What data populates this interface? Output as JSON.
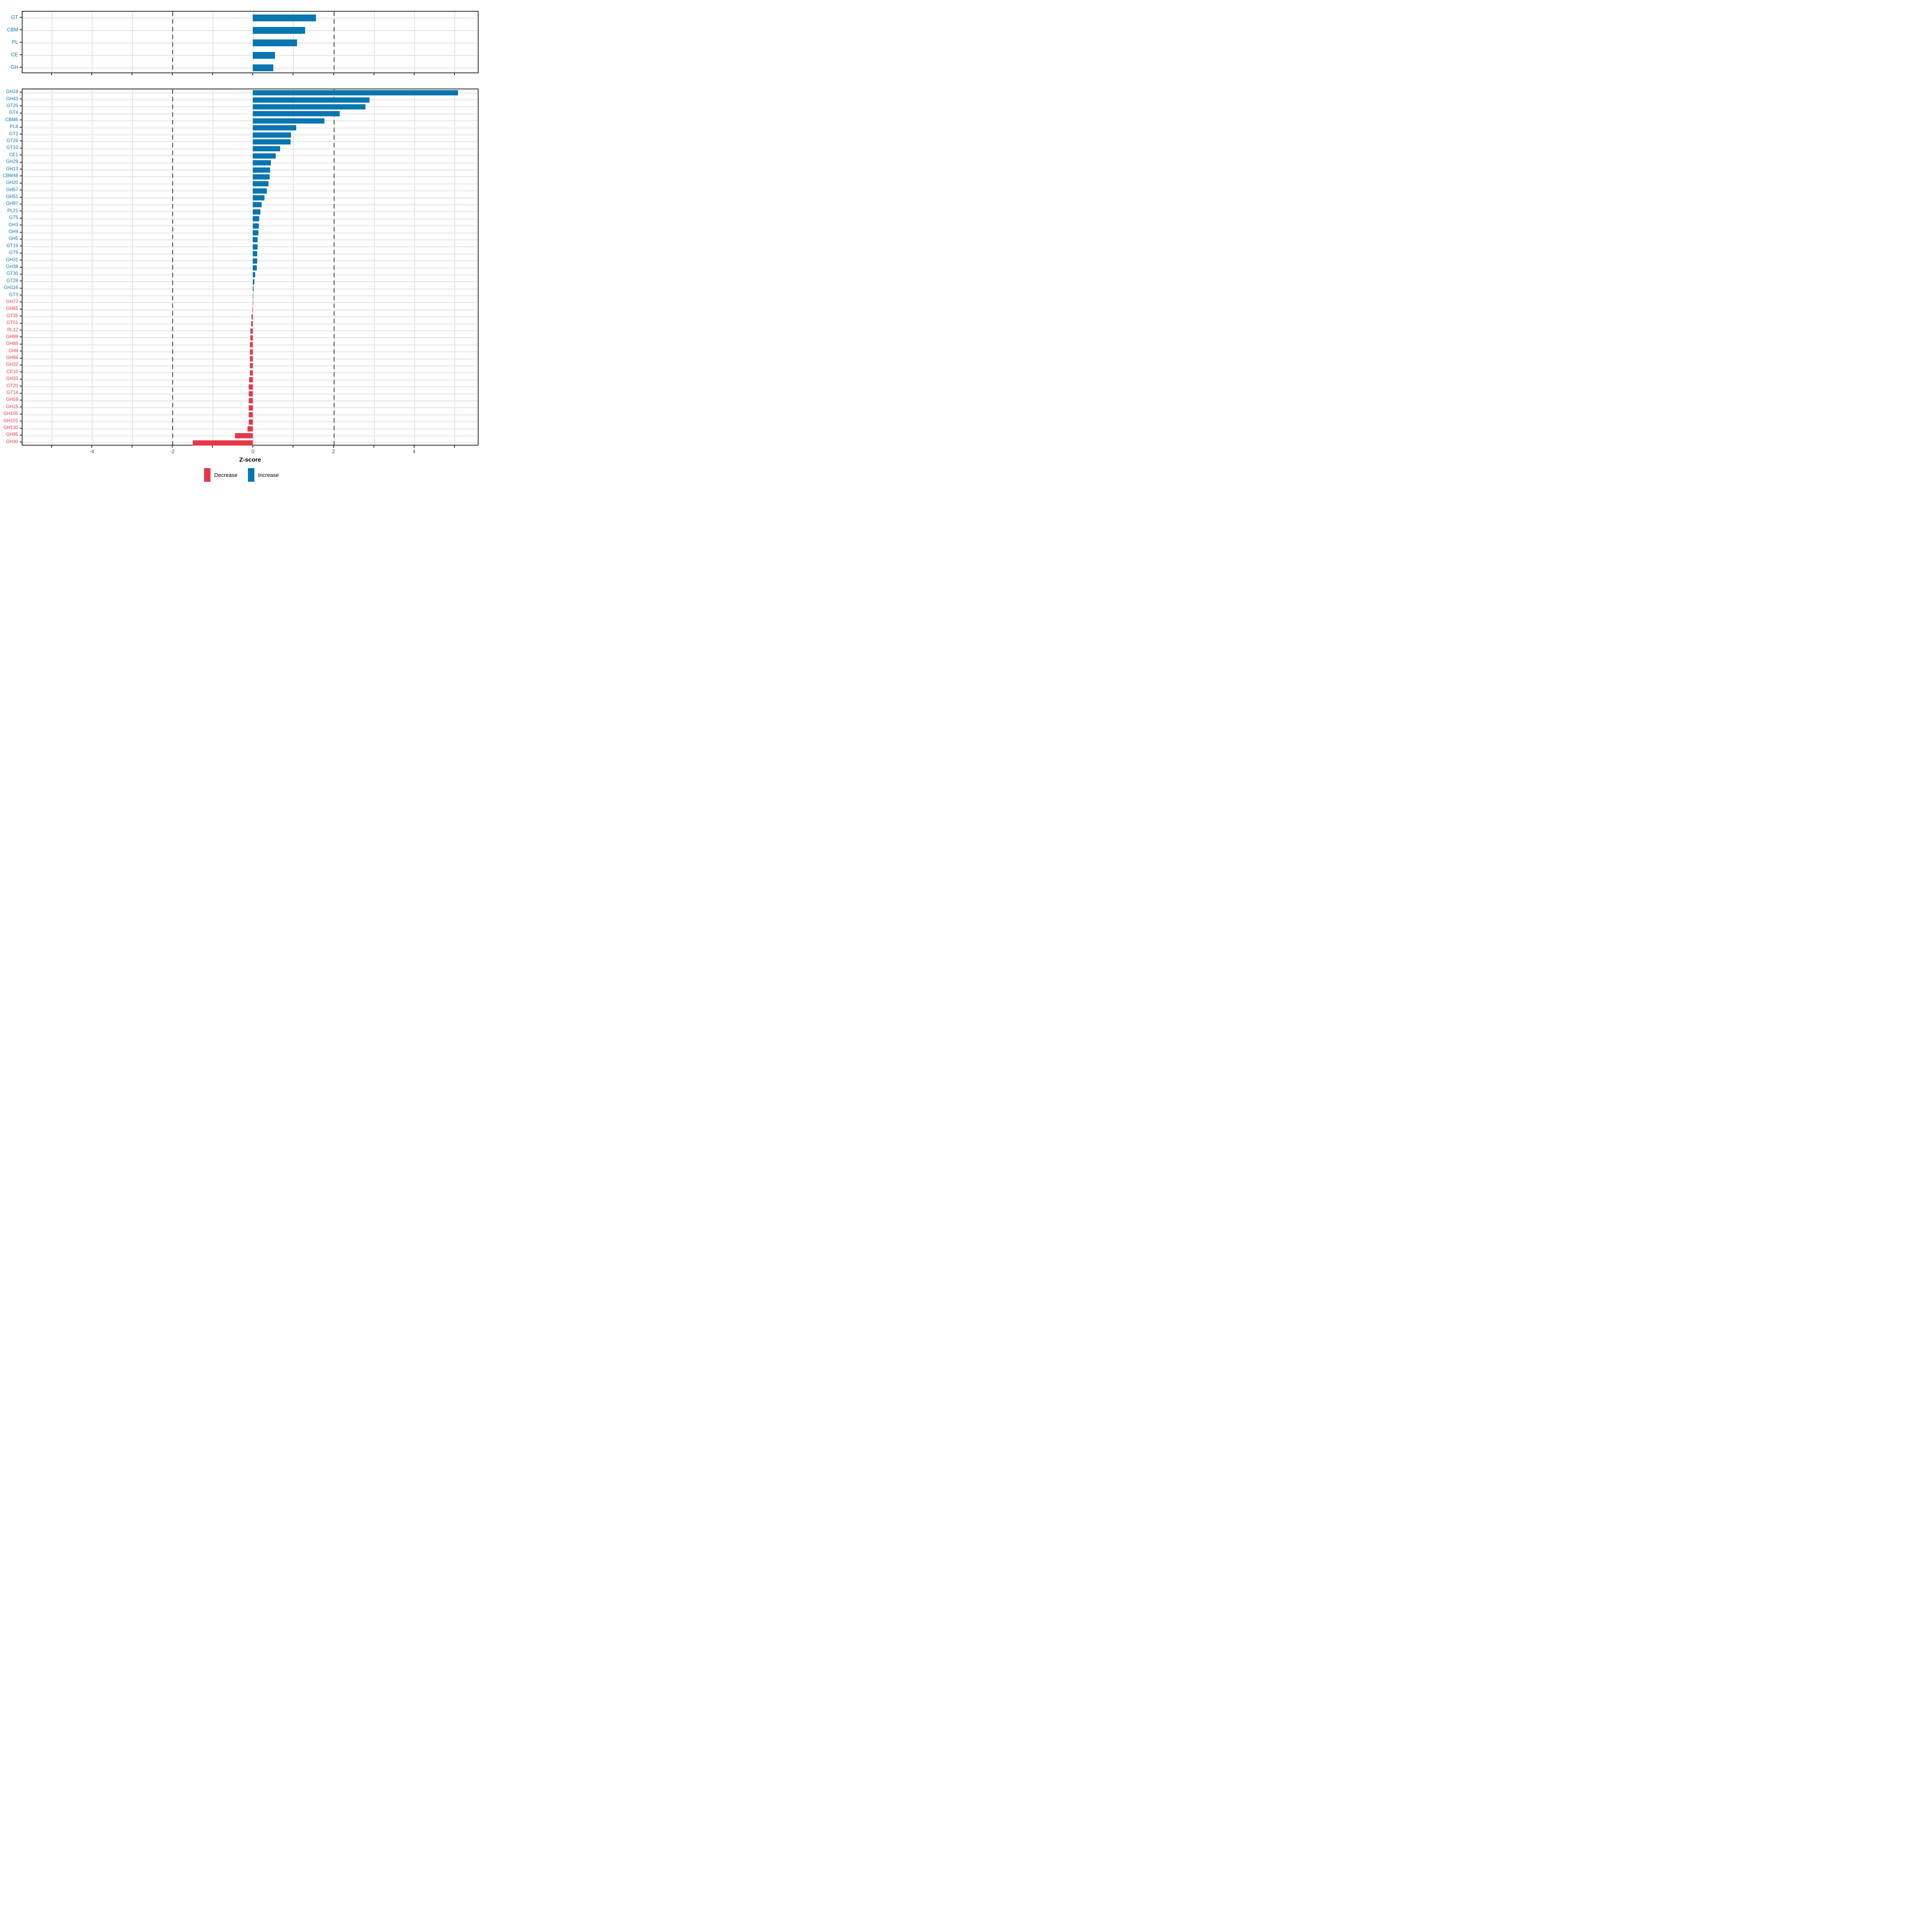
{
  "x_axis": {
    "label": "Z-score",
    "tick_labels": [
      "-4",
      "-2",
      "0",
      "2",
      "4"
    ],
    "tick_values": [
      -4,
      -2,
      0,
      2,
      4
    ],
    "minor_tick_values": [
      -5,
      -4,
      -3,
      -2,
      -1,
      0,
      1,
      2,
      3,
      4,
      5
    ],
    "dashed_guide_values": [
      -2,
      2
    ],
    "min": -5.74,
    "max": 5.6
  },
  "colors": {
    "increase": "#0876b1",
    "decrease": "#e5394b",
    "grid": "#e2e2e2",
    "dashed_guide": "#3f3f3f",
    "axis": "#2f2f2f",
    "tick_label": "#4d4d4d"
  },
  "legend": {
    "items": [
      {
        "label": "Decrease",
        "direction": "decrease"
      },
      {
        "label": "Increase",
        "direction": "increase"
      }
    ]
  },
  "chart_data": [
    {
      "type": "bar",
      "orientation": "horizontal",
      "panel": "top",
      "title": "",
      "xlabel": "Z-score",
      "ylabel": "",
      "xlim": [
        -5.74,
        5.6
      ],
      "grid": true,
      "categories": [
        "GT",
        "CBM",
        "PL",
        "CE",
        "GH"
      ],
      "values": [
        1.57,
        1.3,
        1.1,
        0.55,
        0.51
      ]
    },
    {
      "type": "bar",
      "orientation": "horizontal",
      "panel": "bottom",
      "title": "",
      "xlabel": "Z-score",
      "ylabel": "",
      "xlim": [
        -5.74,
        5.6
      ],
      "grid": true,
      "categories": [
        "GH18",
        "GH43",
        "GT25",
        "GT4",
        "CBM6",
        "PL8",
        "GT2",
        "GT26",
        "GT10",
        "CE1",
        "GH29",
        "GH13",
        "CBM48",
        "GH20",
        "GH57",
        "GH51",
        "GH97",
        "PL21",
        "GT5",
        "GH3",
        "GH9",
        "GH5",
        "GT19",
        "GT9",
        "GH31",
        "GH38",
        "GT30",
        "GT28",
        "GH116",
        "GT3",
        "GH77",
        "GH65",
        "GT35",
        "GT51",
        "PL12",
        "GH99",
        "GH88",
        "GH8",
        "GH66",
        "GH32",
        "CE10",
        "GH33",
        "GT20",
        "GT14",
        "GH59",
        "GH15",
        "GH105",
        "GH101",
        "GH130",
        "GH95",
        "GH30"
      ],
      "values": [
        5.09,
        2.89,
        2.79,
        2.15,
        1.78,
        1.08,
        0.95,
        0.94,
        0.68,
        0.57,
        0.45,
        0.43,
        0.42,
        0.39,
        0.35,
        0.29,
        0.22,
        0.19,
        0.16,
        0.15,
        0.14,
        0.12,
        0.12,
        0.11,
        0.11,
        0.1,
        0.06,
        0.04,
        0.02,
        0.01,
        -0.005,
        -0.01,
        -0.03,
        -0.04,
        -0.06,
        -0.06,
        -0.07,
        -0.07,
        -0.07,
        -0.07,
        -0.07,
        -0.09,
        -0.1,
        -0.1,
        -0.1,
        -0.1,
        -0.1,
        -0.1,
        -0.13,
        -0.44,
        -1.49
      ]
    }
  ]
}
